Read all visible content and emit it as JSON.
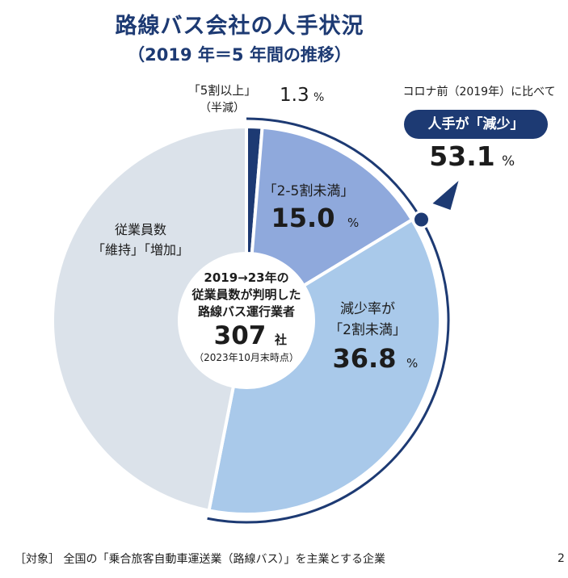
{
  "title": "路線バス会社の人手状況",
  "subtitle": "（2019 年＝5 年間の推移）",
  "chart_data": {
    "type": "pie",
    "style": "donut",
    "unit": "%",
    "slices": [
      {
        "label_lines": [
          "「5割以上」",
          "（半減）"
        ],
        "value": 1.3,
        "value_text": "1.3",
        "color": "#1d3a73"
      },
      {
        "label_lines": [
          "「2-5割未満」"
        ],
        "value": 15.0,
        "value_text": "15.0",
        "color": "#8fa9dc"
      },
      {
        "label_lines": [
          "減少率が",
          "「2割未満」"
        ],
        "value": 36.8,
        "value_text": "36.8",
        "color": "#a9c9ea"
      },
      {
        "label_lines": [
          "従業員数",
          "「維持」「増加」"
        ],
        "value": 46.9,
        "value_text": "",
        "color": "#dbe2ea"
      }
    ],
    "center": {
      "lines": [
        "2019→23年の",
        "従業員数が判明した",
        "路線バス運行業者"
      ],
      "count": "307",
      "count_unit": "社",
      "note": "（2023年10月末時点）"
    },
    "callout": {
      "heading": "コロナ前（2019年）に比べて",
      "badge": "人手が「減少」",
      "value_text": "53.1",
      "unit": "%",
      "color": "#1d3a73"
    }
  },
  "footnote": "［対象］ 全国の「乗合旅客自動車運送業（路線バス）」を主業とする企業",
  "page_number": "2"
}
